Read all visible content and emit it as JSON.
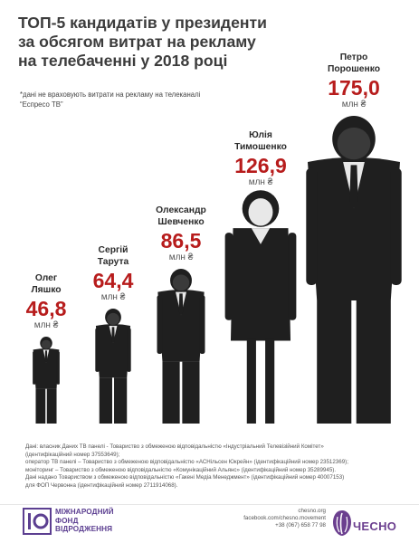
{
  "header": {
    "title": "ТОП-5 кандидатів у президенти за обсягом витрат на рекламу на телебаченні у 2018 році",
    "footnote": "*дані не враховують витрати на рекламу на телеканалі “Еспресо ТВ”"
  },
  "chart_data": {
    "type": "bar",
    "title": "ТОП-5 кандидатів у президенти за обсягом витрат на рекламу на телебаченні у 2018 році",
    "unit": "млн ₴",
    "categories": [
      "Олег Ляшко",
      "Сергій Тарута",
      "Олександр Шевченко",
      "Юлія Тимошенко",
      "Петро Порошенко"
    ],
    "values": [
      46.8,
      64.4,
      86.5,
      126.9,
      175.0
    ],
    "value_labels": [
      "46,8",
      "64,4",
      "86,5",
      "126,9",
      "175,0"
    ],
    "name_lines": [
      [
        "Олег",
        "Ляшко"
      ],
      [
        "Сергій",
        "Тарута"
      ],
      [
        "Олександр",
        "Шевченко"
      ],
      [
        "Юлія",
        "Тимошенко"
      ],
      [
        "Петро",
        "Порошенко"
      ]
    ],
    "bar_style": "silhouette",
    "colors": {
      "value": "#b71c1c",
      "figure": "#1f1f1f",
      "figure_light": "#e8e8e8"
    },
    "xlabel": "",
    "ylabel": ""
  },
  "source": {
    "lines": [
      "Дані: власник Даних ТВ панелі - Товариство з обмеженою відповідальністю «Індустріальний Телевізійний Комітет»",
      "(ідентифікаційний номер 37553649);",
      "оператор ТВ панелі – Товариство з обмеженою відповідальністю «АСНільсен Юкрейн» (ідентифікаційний номер 23512369);",
      "моніторинг – Товариство з обмеженою відповідальністю «Комунікаційний Альянс» (ідентифікаційний номер 35289945).",
      "Дані надано Товариством з обмеженою відповідальністю «Гакені Медіа Менеджмент» (ідентифікаційний номер 40007153)",
      "для ФОП Червонна (ідентифікаційний номер 2711914068)."
    ]
  },
  "footer": {
    "irf_lines": [
      "МІЖНАРОДНИЙ",
      "ФОНД",
      "ВІДРОДЖЕННЯ"
    ],
    "contacts": [
      "chesno.org",
      "facebook.com/chesno.movement",
      "+38 (067) 658 77 98"
    ],
    "chesno": "ЧЕСНО",
    "icon_irf": "irf-logo-icon",
    "icon_chesno": "chesno-logo-icon"
  }
}
